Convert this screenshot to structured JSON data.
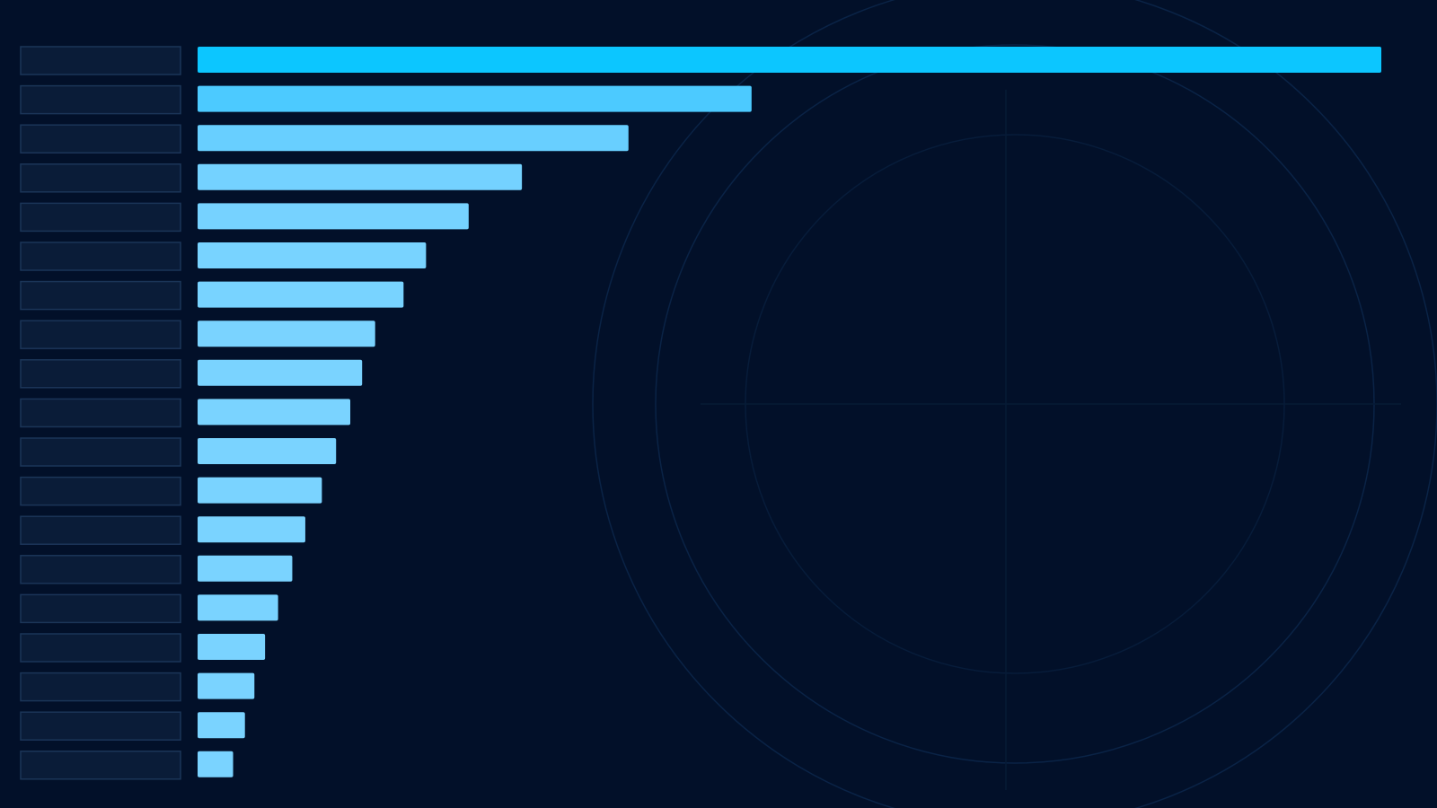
{
  "chart_data": {
    "type": "bar",
    "orientation": "horizontal",
    "categories": [
      null,
      null,
      null,
      null,
      null,
      null,
      null,
      null,
      null,
      null,
      null,
      null,
      null,
      null,
      null,
      null,
      null,
      null,
      null
    ],
    "values": [
      100,
      46.8,
      36.4,
      27.4,
      22.9,
      19.3,
      17.4,
      15.0,
      13.9,
      12.9,
      11.7,
      10.5,
      9.1,
      8.0,
      6.8,
      5.7,
      4.8,
      4.0,
      3.0
    ],
    "colors": [
      "#0cc6ff",
      "#4ccaff",
      "#68cfff",
      "#74d2ff",
      "#76d2ff",
      "#78d3ff",
      "#78d3ff",
      "#7ad3ff",
      "#7ad3ff",
      "#7ad3ff",
      "#7ad3ff",
      "#7ad3ff",
      "#7ad3ff",
      "#7ad3ff",
      "#7ad3ff",
      "#7ad3ff",
      "#7ad3ff",
      "#7ad3ff",
      "#7ad3ff"
    ]
  }
}
